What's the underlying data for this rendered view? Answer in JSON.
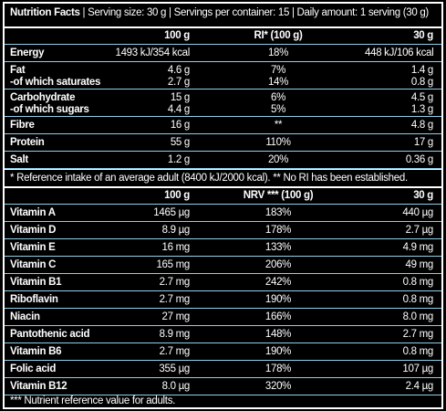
{
  "header": {
    "title": "Nutrition Facts",
    "details": "| Serving size: 30 g | Servings per container: 15 | Daily amount: 1 serving (30 g)"
  },
  "table1": {
    "columns": [
      "100 g",
      "RI* (100 g)",
      "30 g"
    ],
    "groups": [
      [
        [
          "Energy",
          "1493 kJ/354 kcal",
          "18%",
          "448 kJ/106 kcal"
        ]
      ],
      [
        [
          "Fat",
          "4.6 g",
          "7%",
          "1.4 g"
        ],
        [
          "-of which saturates",
          "2.7 g",
          "14%",
          "0.8 g"
        ]
      ],
      [
        [
          "Carbohydrate",
          "15 g",
          "6%",
          "4.5 g"
        ],
        [
          "-of which sugars",
          "4.4 g",
          "5%",
          "1.3 g"
        ]
      ],
      [
        [
          "Fibre",
          "16 g",
          "**",
          "4.8 g"
        ]
      ],
      [
        [
          "Protein",
          "55 g",
          "110%",
          "17 g"
        ]
      ],
      [
        [
          "Salt",
          "1.2 g",
          "20%",
          "0.36 g"
        ]
      ]
    ],
    "footnote": "* Reference intake of an average adult (8400 kJ/2000 kcal). ** No RI has been established."
  },
  "table2": {
    "columns": [
      "100 g",
      "NRV *** (100 g)",
      "30 g"
    ],
    "groups": [
      [
        [
          "Vitamin A",
          "1465 µg",
          "183%",
          "440 µg"
        ]
      ],
      [
        [
          "Vitamin D",
          "8.9 µg",
          "178%",
          "2.7 µg"
        ]
      ],
      [
        [
          "Vitamin E",
          "16 mg",
          "133%",
          "4.9 mg"
        ]
      ],
      [
        [
          "Vitamin C",
          "165 mg",
          "206%",
          "49 mg"
        ]
      ],
      [
        [
          "Vitamin B1",
          "2.7 mg",
          "242%",
          "0.8 mg"
        ]
      ],
      [
        [
          "Riboflavin",
          "2.7 mg",
          "190%",
          "0.8 mg"
        ]
      ],
      [
        [
          "Niacin",
          "27 mg",
          "166%",
          "8.0 mg"
        ]
      ],
      [
        [
          "Pantothenic acid",
          "8.9 mg",
          "148%",
          "2.7 mg"
        ]
      ],
      [
        [
          "Vitamin B6",
          "2.7 mg",
          "190%",
          "0.8 mg"
        ]
      ],
      [
        [
          "Folic acid",
          "355 µg",
          "178%",
          "107 µg"
        ]
      ],
      [
        [
          "Vitamin B12",
          "8.0 µg",
          "320%",
          "2.4 µg"
        ]
      ]
    ],
    "footnote": "*** Nutrient reference value for adults."
  }
}
